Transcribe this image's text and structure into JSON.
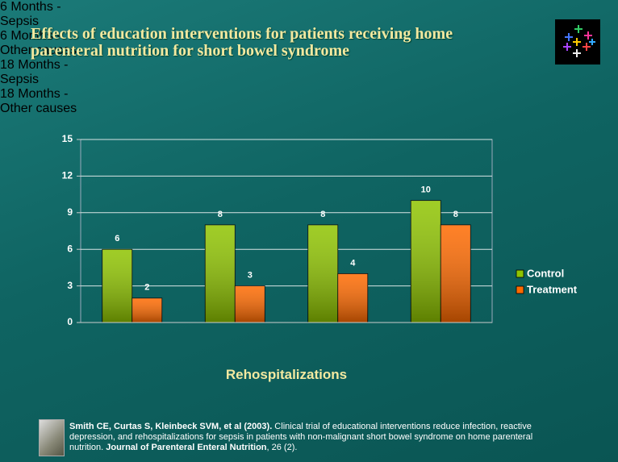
{
  "chart_data": {
    "type": "bar",
    "title": "Effects of education interventions for patients receiving home parenteral nutrition for short bowel syndrome",
    "x_label": "Rehospitalizations",
    "categories": [
      "6 Months - Sepsis",
      "6 Months - Other causes",
      "18 Months - Sepsis",
      "18 Months - Other causes"
    ],
    "series": [
      {
        "name": "Control",
        "color": "#8fc400",
        "values": [
          6,
          8,
          8,
          10
        ]
      },
      {
        "name": "Treatment",
        "color": "#ff6a00",
        "values": [
          2,
          3,
          4,
          8
        ]
      }
    ],
    "ylim": [
      0,
      15
    ],
    "yticks": [
      0,
      3,
      6,
      9,
      12,
      15
    ],
    "grid": true,
    "legend": "right"
  },
  "citation": [
    {
      "text": "Smith CE, Curtas S, Kleinbeck SVM, et al (2003).",
      "bold": true
    },
    {
      "text": " Clinical trial of educational interventions reduce infection, reactive depression, and rehospitalizations for sepsis in patients with non-malignant short bowel syndrome on home parenteral nutrition. ",
      "bold": false
    },
    {
      "text": "Journal of Parenteral Enteral Nutrition",
      "bold": true
    },
    {
      "text": ", 26 (2).",
      "bold": false
    }
  ]
}
